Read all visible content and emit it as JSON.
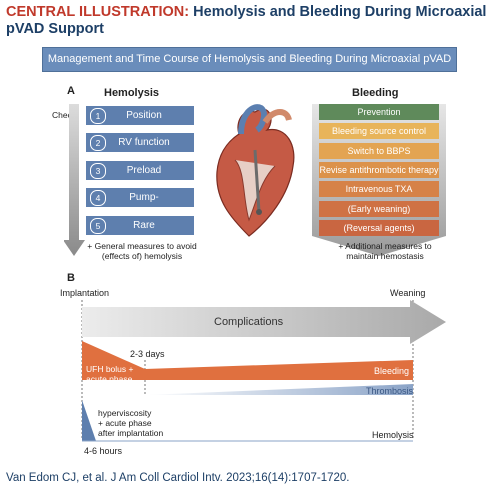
{
  "title": {
    "tag": "CENTRAL ILLUSTRATION:",
    "text": " Hemolysis and Bleeding During Microaxial pVAD Support"
  },
  "panel_title": "Management and Time Course of Hemolysis and Bleeding During Microaxial pVAD Support",
  "section_a": {
    "label": "A",
    "check": "Check",
    "hemolysis_header": "Hemolysis",
    "bleeding_header": "Bleeding",
    "hemolysis_steps": [
      {
        "num": "1",
        "label": "Position"
      },
      {
        "num": "2",
        "label": "RV function"
      },
      {
        "num": "3",
        "label": "Preload"
      },
      {
        "num": "4",
        "label": "Pump-related"
      },
      {
        "num": "5",
        "label": "Rare causes"
      }
    ],
    "bleeding_steps": [
      {
        "label": "Prevention",
        "color": "#5f8a5b"
      },
      {
        "label": "Bleeding source control",
        "color": "#e8b45a"
      },
      {
        "label": "Switch to BBPS",
        "color": "#e3a452"
      },
      {
        "label": "Revise antithrombotic therapy",
        "color": "#dc924a"
      },
      {
        "label": "Intravenous TXA",
        "color": "#d68248"
      },
      {
        "label": "(Early weaning)",
        "color": "#cf7244"
      },
      {
        "label": "(Reversal agents)",
        "color": "#c96641"
      }
    ],
    "hemolysis_note": [
      "+ General measures to avoid",
      "(effects of) hemolysis"
    ],
    "bleeding_note": [
      "+ Additional measures to",
      "maintain hemostasis"
    ]
  },
  "section_b": {
    "label": "B",
    "implantation": "Implantation",
    "weaning": "Weaning",
    "complications": "Complications",
    "days": "2-3 days",
    "ufh": [
      "UFH bolus +",
      "acute phase"
    ],
    "bleeding": "Bleeding",
    "thrombosis": "Thrombosis",
    "hyper": [
      "hyperviscosity",
      "+ acute phase",
      "after implantation"
    ],
    "hemolysis": "Hemolysis",
    "hours": "4-6 hours"
  },
  "citation": "Van Edom CJ, et al. J Am Coll Cardiol Intv. 2023;16(14):1707-1720.",
  "colors": {
    "navy": "#1d3f66",
    "red": "#c0392b",
    "blue": "#5e7fae",
    "orange": "#e0703f",
    "lightblue": "#8fa8cb",
    "grey": "#9a9a9a"
  }
}
